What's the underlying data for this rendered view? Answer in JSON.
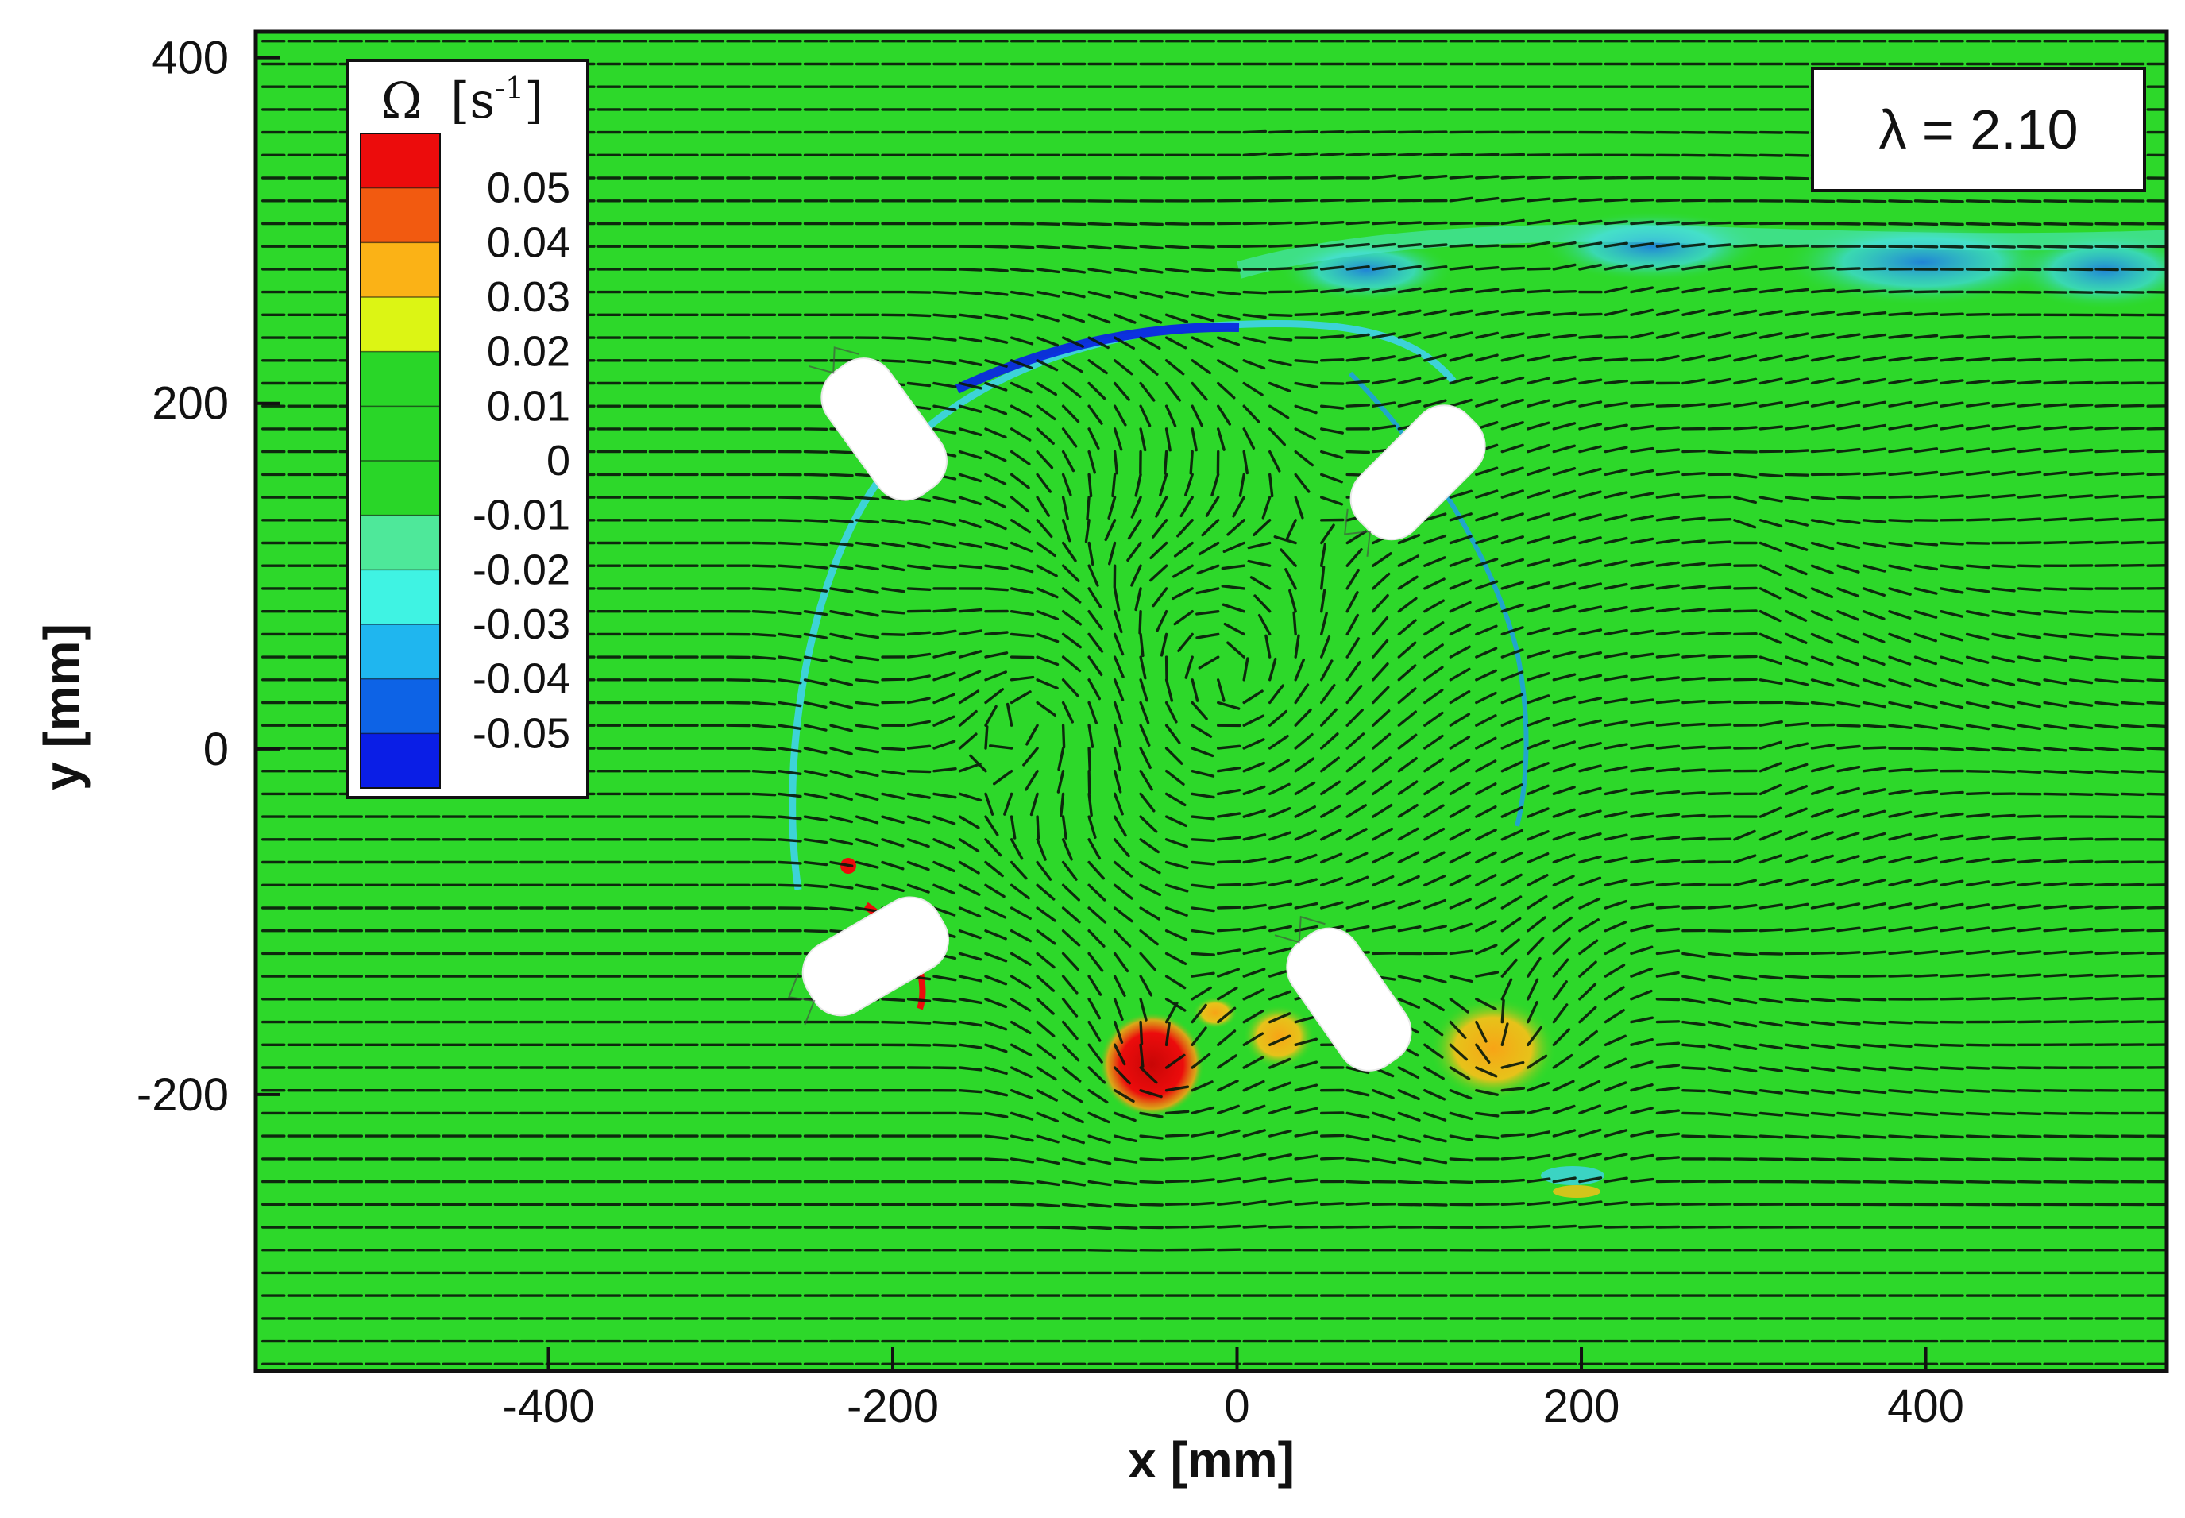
{
  "chart_data": {
    "type": "heatmap",
    "title": "",
    "xlabel": "x [mm]",
    "ylabel": "y [mm]",
    "xlim": [
      -570,
      540
    ],
    "ylim": [
      -360,
      415
    ],
    "x_ticks": [
      -400,
      -200,
      0,
      200,
      400
    ],
    "y_ticks": [
      -200,
      0,
      200,
      400
    ],
    "x_tick_labels": [
      "-400",
      "-200",
      "0",
      "200",
      "400"
    ],
    "y_tick_labels": [
      "-200",
      "0",
      "200",
      "400"
    ],
    "annotation": "λ = 2.10",
    "colorbar": {
      "title_symbol": "Ω",
      "title_unit": "[s",
      "title_exp": "-1",
      "title_close": "]",
      "levels": [
        "0.05",
        "0.04",
        "0.03",
        "0.02",
        "0.01",
        "0",
        "-0.01",
        "-0.02",
        "-0.03",
        "-0.04",
        "-0.05"
      ],
      "colors": [
        "#ec0c0c",
        "#f25a10",
        "#fbb216",
        "#dcf514",
        "#29d628",
        "#29d628",
        "#29d628",
        "#4ee89a",
        "#3ff3e3",
        "#1fb6ef",
        "#0d63e6",
        "#0a1ee6"
      ]
    },
    "background_color": "#2dd82a",
    "blades": [
      {
        "x": -205,
        "y": 185,
        "angle_deg": 54
      },
      {
        "x": 105,
        "y": 160,
        "angle_deg": -45
      },
      {
        "x": -210,
        "y": -120,
        "angle_deg": -30
      },
      {
        "x": 65,
        "y": -145,
        "angle_deg": 55
      }
    ],
    "vortices": [
      {
        "x": -48,
        "y": -182,
        "r": 28,
        "color": "#ec0c0c"
      },
      {
        "x": -48,
        "y": -182,
        "r": 14,
        "color": "#c80606"
      },
      {
        "x": 150,
        "y": -175,
        "r": 34,
        "color": "#fbb216"
      },
      {
        "x": 22,
        "y": -160,
        "r": 14,
        "color": "#fbb216"
      },
      {
        "x": -222,
        "y": -90,
        "r": 12,
        "color": "#ec0c0c"
      }
    ]
  }
}
